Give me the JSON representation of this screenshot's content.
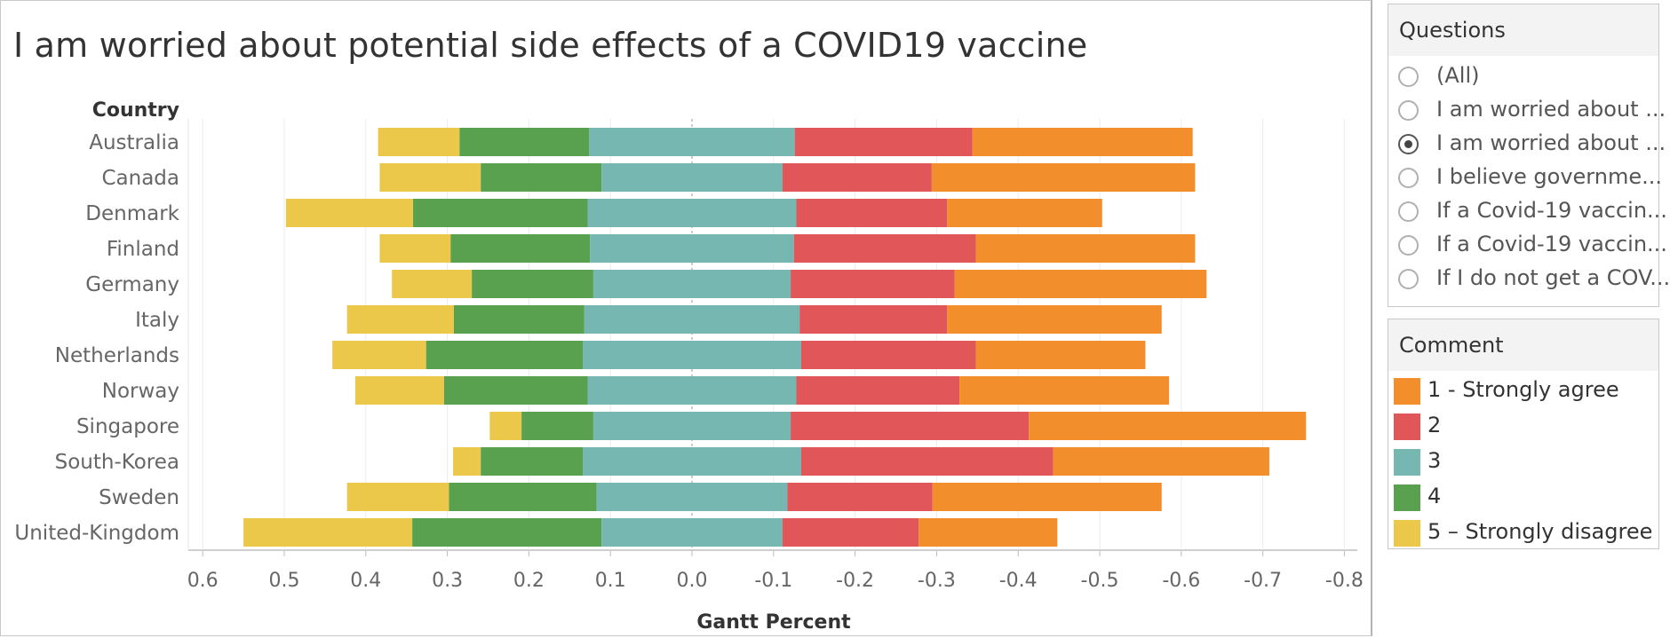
{
  "chart_data": {
    "type": "bar",
    "stacked": "diverging",
    "title": "I am worried about potential side effects of a COVID19 vaccine",
    "row_header": "Country",
    "xlabel": "Gantt Percent",
    "xlim": [
      0.62,
      -0.82
    ],
    "x_ticks": [
      "0.6",
      "0.5",
      "0.4",
      "0.3",
      "0.2",
      "0.1",
      "0.0",
      "-0.1",
      "-0.2",
      "-0.3",
      "-0.4",
      "-0.5",
      "-0.6",
      "-0.7",
      "-0.8"
    ],
    "x_tick_values": [
      0.6,
      0.5,
      0.4,
      0.3,
      0.2,
      0.1,
      0.0,
      -0.1,
      -0.2,
      -0.3,
      -0.4,
      -0.5,
      -0.6,
      -0.7,
      -0.8
    ],
    "grid": true,
    "categories": [
      "Australia",
      "Canada",
      "Denmark",
      "Finland",
      "Germany",
      "Italy",
      "Netherlands",
      "Norway",
      "Singapore",
      "South-Korea",
      "Sweden",
      "United-Kingdom"
    ],
    "series": [
      {
        "name": "5 – Strongly disagree",
        "color": "#EBC84A",
        "start": [
          0.385,
          0.383,
          0.498,
          0.383,
          0.368,
          0.423,
          0.441,
          0.413,
          0.248,
          0.293,
          0.423,
          0.55
        ],
        "end": [
          0.285,
          0.259,
          0.342,
          0.296,
          0.27,
          0.292,
          0.326,
          0.304,
          0.209,
          0.259,
          0.298,
          0.343
        ]
      },
      {
        "name": "4",
        "color": "#59A14F",
        "start": [
          0.285,
          0.259,
          0.342,
          0.296,
          0.27,
          0.292,
          0.326,
          0.304,
          0.209,
          0.259,
          0.298,
          0.343
        ],
        "end": [
          0.126,
          0.111,
          0.128,
          0.125,
          0.121,
          0.132,
          0.134,
          0.128,
          0.121,
          0.134,
          0.117,
          0.111
        ]
      },
      {
        "name": "3",
        "color": "#76B7B2",
        "start": [
          0.126,
          0.111,
          0.128,
          0.125,
          0.121,
          0.132,
          0.134,
          0.128,
          0.121,
          0.134,
          0.117,
          0.111
        ],
        "end": [
          -0.126,
          -0.111,
          -0.128,
          -0.125,
          -0.121,
          -0.132,
          -0.134,
          -0.128,
          -0.121,
          -0.134,
          -0.117,
          -0.111
        ]
      },
      {
        "name": "2",
        "color": "#E15759",
        "start": [
          -0.126,
          -0.111,
          -0.128,
          -0.125,
          -0.121,
          -0.132,
          -0.134,
          -0.128,
          -0.121,
          -0.134,
          -0.117,
          -0.111
        ],
        "end": [
          -0.344,
          -0.294,
          -0.313,
          -0.348,
          -0.322,
          -0.313,
          -0.348,
          -0.328,
          -0.413,
          -0.443,
          -0.295,
          -0.278
        ]
      },
      {
        "name": "1 - Strongly agree",
        "color": "#F28E2B",
        "start": [
          -0.344,
          -0.294,
          -0.313,
          -0.348,
          -0.322,
          -0.313,
          -0.348,
          -0.328,
          -0.413,
          -0.443,
          -0.295,
          -0.278
        ],
        "end": [
          -0.614,
          -0.617,
          -0.503,
          -0.617,
          -0.631,
          -0.576,
          -0.556,
          -0.585,
          -0.753,
          -0.708,
          -0.576,
          -0.448
        ]
      }
    ]
  },
  "questions": {
    "title": "Questions",
    "selected_index": 2,
    "items": [
      "(All)",
      "I am worried about ...",
      "I am worried about ...",
      "I believe governme...",
      "If a Covid-19 vaccin...",
      "If a Covid-19 vaccin...",
      "If I do not get a COV..."
    ]
  },
  "comment_legend": {
    "title": "Comment",
    "items": [
      {
        "label": "1 - Strongly agree",
        "color": "#F28E2B"
      },
      {
        "label": "2",
        "color": "#E15759"
      },
      {
        "label": "3",
        "color": "#76B7B2"
      },
      {
        "label": "4",
        "color": "#59A14F"
      },
      {
        "label": "5 – Strongly disagree",
        "color": "#EBC84A"
      }
    ]
  }
}
